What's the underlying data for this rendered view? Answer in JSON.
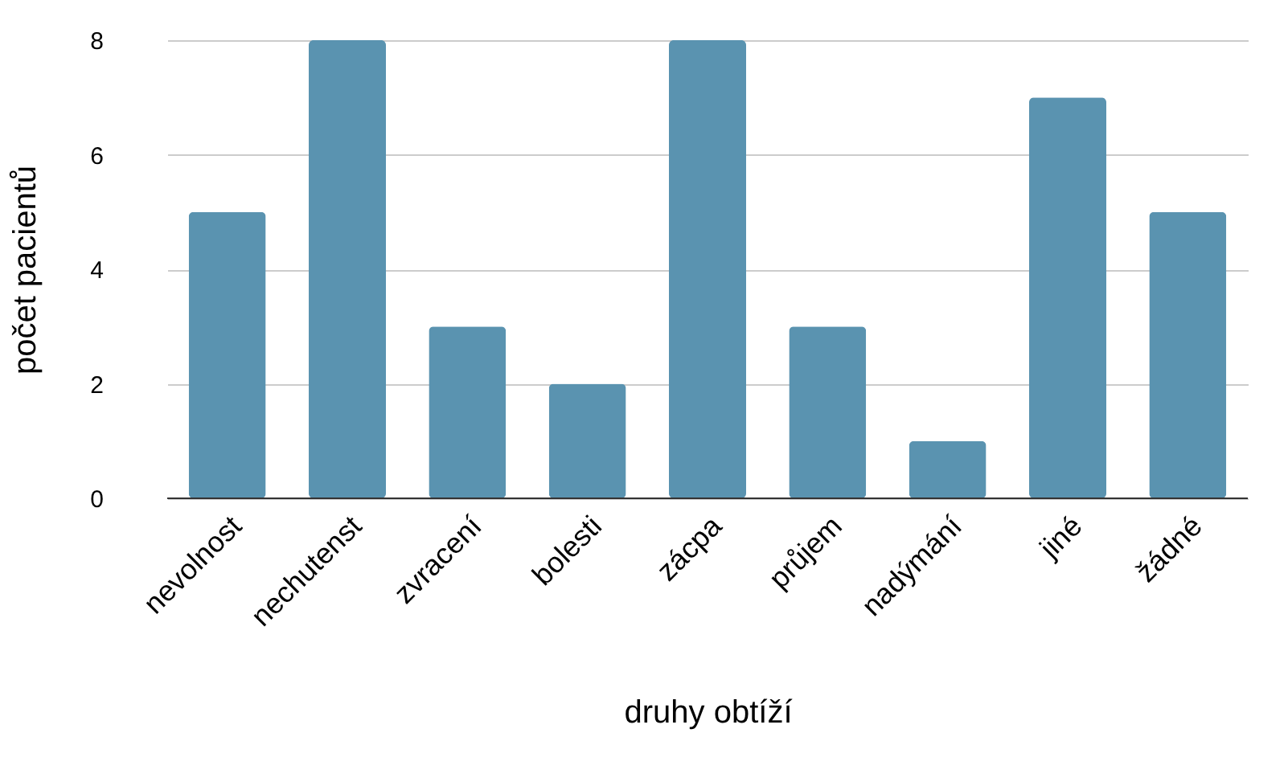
{
  "chart_data": {
    "type": "bar",
    "xlabel": "druhy obtíží",
    "ylabel": "počet pacientů",
    "categories": [
      "nevolnost",
      "nechutenst",
      "zvracení",
      "bolesti",
      "zácpa",
      "průjem",
      "nadýmání",
      "jiné",
      "žádné"
    ],
    "values": [
      5,
      8,
      3,
      2,
      8,
      3,
      1,
      7,
      5
    ],
    "color": "#5a93b0",
    "ylim": [
      0,
      8
    ],
    "yticks": [
      0,
      2,
      4,
      6,
      8
    ],
    "grid": "y"
  }
}
